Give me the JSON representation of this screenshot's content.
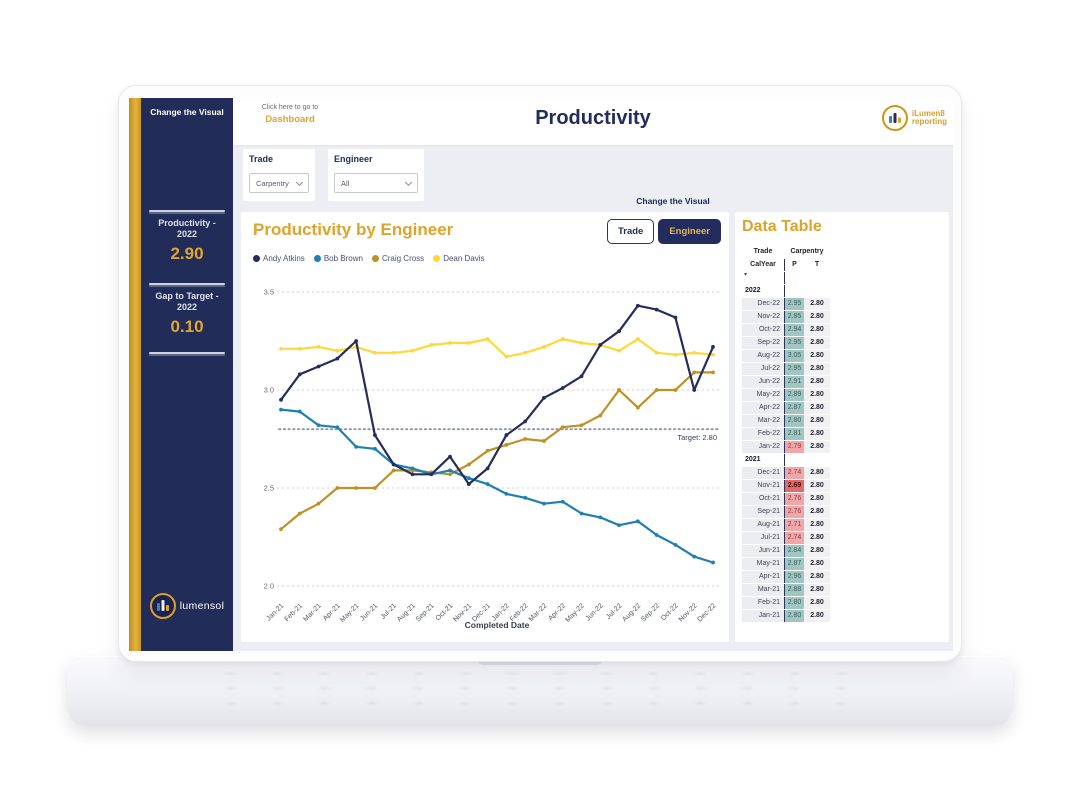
{
  "sidebar": {
    "change_visual_label": "Change the Visual",
    "kpis": [
      {
        "label": "Productivity - 2022",
        "value": "2.90"
      },
      {
        "label": "Gap to Target - 2022",
        "value": "0.10"
      }
    ],
    "logo_text": "lumensol"
  },
  "header": {
    "nav_hint": "Click here to go to",
    "nav_link": "Dashboard",
    "title": "Productivity",
    "logo_line1": "iLumen8",
    "logo_line2": "reporting"
  },
  "filters": [
    {
      "label": "Trade",
      "value": "Carpentry"
    },
    {
      "label": "Engineer",
      "value": "All"
    }
  ],
  "visual_toggle": {
    "label": "Change the Visual",
    "buttons": [
      {
        "label": "Trade",
        "active": false
      },
      {
        "label": "Engineer",
        "active": true
      }
    ]
  },
  "colors": {
    "navy": "#222C59",
    "gold": "#DFA32B",
    "table_good": "#9FC6C1",
    "table_bad": "#F1A7AA",
    "table_bad_selected": "#E2696C"
  },
  "chart_data": {
    "type": "line",
    "title": "Productivity by Engineer",
    "xlabel": "Completed Date",
    "ylim": [
      2.0,
      3.5
    ],
    "yticks": [
      "2.0",
      "2.5",
      "3.0",
      "3.5"
    ],
    "grid": "horizontal-dashed",
    "legend_position": "top-left",
    "target": {
      "value": 2.8,
      "label": "Target: 2.80"
    },
    "x": [
      "Jan-21",
      "Feb-21",
      "Mar-21",
      "Apr-21",
      "May-21",
      "Jun-21",
      "Jul-21",
      "Aug-21",
      "Sep-21",
      "Oct-21",
      "Nov-21",
      "Dec-21",
      "Jan-22",
      "Feb-22",
      "Mar-22",
      "Apr-22",
      "May-22",
      "Jun-22",
      "Jul-22",
      "Aug-22",
      "Sep-22",
      "Oct-22",
      "Nov-22",
      "Dec-22"
    ],
    "series": [
      {
        "name": "Andy Atkins",
        "color": "#252D5C",
        "values": [
          2.95,
          3.08,
          3.12,
          3.16,
          3.25,
          2.77,
          2.62,
          2.57,
          2.57,
          2.66,
          2.52,
          2.6,
          2.77,
          2.84,
          2.96,
          3.01,
          3.07,
          3.23,
          3.3,
          3.43,
          3.41,
          3.37,
          3.0,
          3.22
        ]
      },
      {
        "name": "Bob Brown",
        "color": "#1F7FB2",
        "values": [
          2.9,
          2.89,
          2.82,
          2.81,
          2.71,
          2.7,
          2.62,
          2.6,
          2.57,
          2.59,
          2.55,
          2.52,
          2.47,
          2.45,
          2.42,
          2.43,
          2.37,
          2.35,
          2.31,
          2.33,
          2.26,
          2.21,
          2.15,
          2.12
        ]
      },
      {
        "name": "Craig Cross",
        "color": "#BE9025",
        "values": [
          2.29,
          2.37,
          2.42,
          2.5,
          2.5,
          2.5,
          2.59,
          2.59,
          2.58,
          2.57,
          2.62,
          2.69,
          2.72,
          2.75,
          2.74,
          2.81,
          2.82,
          2.87,
          3.0,
          2.91,
          3.0,
          3.0,
          3.09,
          3.09
        ]
      },
      {
        "name": "Dean Davis",
        "color": "#FFD838",
        "values": [
          3.21,
          3.21,
          3.22,
          3.2,
          3.22,
          3.19,
          3.19,
          3.2,
          3.23,
          3.24,
          3.24,
          3.26,
          3.17,
          3.19,
          3.22,
          3.26,
          3.24,
          3.23,
          3.2,
          3.26,
          3.19,
          3.18,
          3.19,
          3.18
        ]
      }
    ]
  },
  "data_table": {
    "title": "Data Table",
    "header": {
      "trade": "Trade",
      "trade_value": "Carpentry",
      "row_label": "CalYear",
      "p": "P",
      "t": "T"
    },
    "groups": [
      {
        "year": "2022",
        "rows": [
          {
            "month": "Dec-22",
            "p": "2.95",
            "t": "2.80",
            "status": "good"
          },
          {
            "month": "Nov-22",
            "p": "2.85",
            "t": "2.80",
            "status": "good"
          },
          {
            "month": "Oct-22",
            "p": "2.94",
            "t": "2.80",
            "status": "good"
          },
          {
            "month": "Sep-22",
            "p": "2.95",
            "t": "2.80",
            "status": "good"
          },
          {
            "month": "Aug-22",
            "p": "3.05",
            "t": "2.80",
            "status": "good"
          },
          {
            "month": "Jul-22",
            "p": "2.95",
            "t": "2.80",
            "status": "good"
          },
          {
            "month": "Jun-22",
            "p": "2.91",
            "t": "2.80",
            "status": "good"
          },
          {
            "month": "May-22",
            "p": "2.89",
            "t": "2.80",
            "status": "good"
          },
          {
            "month": "Apr-22",
            "p": "2.87",
            "t": "2.80",
            "status": "good"
          },
          {
            "month": "Mar-22",
            "p": "2.80",
            "t": "2.80",
            "status": "good"
          },
          {
            "month": "Feb-22",
            "p": "2.81",
            "t": "2.80",
            "status": "good"
          },
          {
            "month": "Jan-22",
            "p": "2.79",
            "t": "2.80",
            "status": "bad"
          }
        ]
      },
      {
        "year": "2021",
        "rows": [
          {
            "month": "Dec-21",
            "p": "2.74",
            "t": "2.80",
            "status": "bad"
          },
          {
            "month": "Nov-21",
            "p": "2.69",
            "t": "2.80",
            "status": "bad-strong"
          },
          {
            "month": "Oct-21",
            "p": "2.76",
            "t": "2.80",
            "status": "bad"
          },
          {
            "month": "Sep-21",
            "p": "2.76",
            "t": "2.80",
            "status": "bad"
          },
          {
            "month": "Aug-21",
            "p": "2.71",
            "t": "2.80",
            "status": "bad"
          },
          {
            "month": "Jul-21",
            "p": "2.74",
            "t": "2.80",
            "status": "bad"
          },
          {
            "month": "Jun-21",
            "p": "2.84",
            "t": "2.80",
            "status": "good"
          },
          {
            "month": "May-21",
            "p": "2.87",
            "t": "2.80",
            "status": "good"
          },
          {
            "month": "Apr-21",
            "p": "2.96",
            "t": "2.80",
            "status": "good"
          },
          {
            "month": "Mar-21",
            "p": "2.88",
            "t": "2.80",
            "status": "good"
          },
          {
            "month": "Feb-21",
            "p": "2.80",
            "t": "2.80",
            "status": "good"
          },
          {
            "month": "Jan-21",
            "p": "2.80",
            "t": "2.80",
            "status": "good"
          }
        ]
      }
    ]
  }
}
